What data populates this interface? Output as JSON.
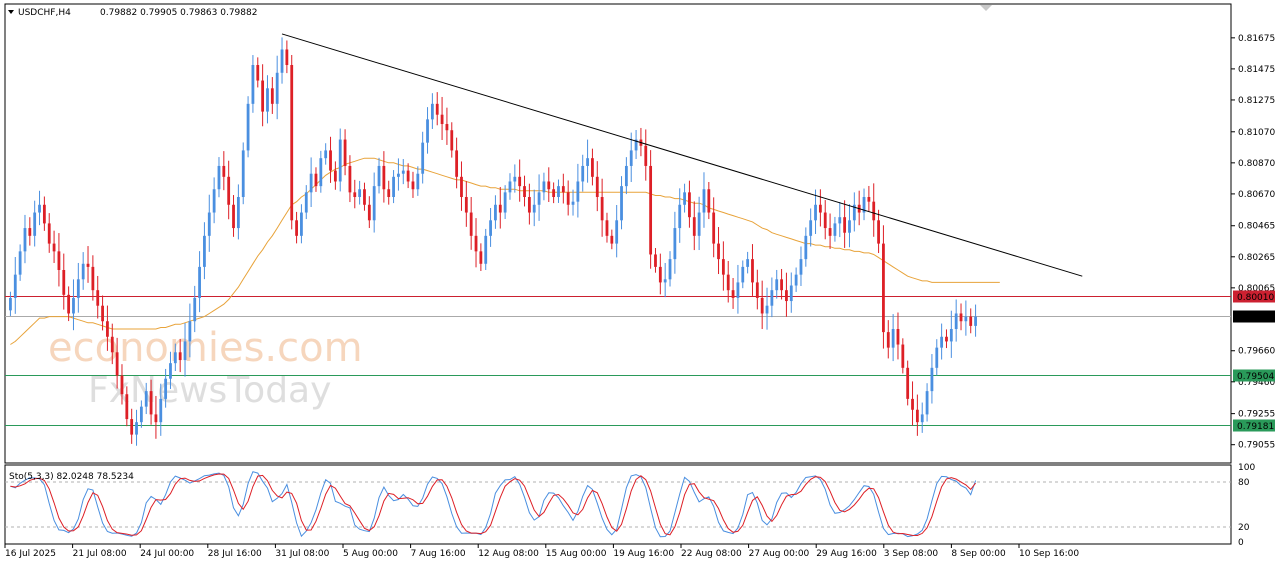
{
  "header": {
    "symbol": "USDCHF,H4",
    "ohlc": "0.79882 0.79905 0.79863 0.79882"
  },
  "watermark": {
    "line1": "economies.com",
    "line2": "FxNewsToday"
  },
  "indicator": {
    "label": "Sto(5,3,3) 82.0248 78.5234",
    "levels": [
      "100",
      "80",
      "20",
      "0"
    ]
  },
  "colors": {
    "bull": "#4a8fe0",
    "bear": "#dd1f26",
    "ma": "#e8a33a",
    "trendline": "#000000",
    "resistance": "#cc2030",
    "support": "#2a9a5a",
    "current": "#aaaaaa",
    "stoch_main": "#4a8fe0",
    "stoch_signal": "#dd1f26"
  },
  "chart_data": {
    "type": "candlestick",
    "symbol": "USDCHF",
    "timeframe": "H4",
    "ylim": [
      0.7895,
      0.8188
    ],
    "price_ticks": [
      "0.81675",
      "0.81475",
      "0.81275",
      "0.81070",
      "0.80870",
      "0.80670",
      "0.80465",
      "0.80265",
      "0.80065",
      "0.79660",
      "0.79460",
      "0.79255",
      "0.79055"
    ],
    "time_labels": [
      "16 Jul 2025",
      "21 Jul 08:00",
      "24 Jul 00:00",
      "28 Jul 16:00",
      "31 Jul 08:00",
      "5 Aug 00:00",
      "7 Aug 16:00",
      "12 Aug 08:00",
      "15 Aug 00:00",
      "19 Aug 16:00",
      "22 Aug 08:00",
      "27 Aug 00:00",
      "29 Aug 16:00",
      "3 Sep 08:00",
      "8 Sep 00:00",
      "10 Sep 16:00"
    ],
    "horizontal_levels": [
      {
        "price": 0.8001,
        "label": "0.80010",
        "role": "resistance"
      },
      {
        "price": 0.79882,
        "label": "0.79882",
        "role": "current"
      },
      {
        "price": 0.79504,
        "label": "0.79504",
        "role": "support"
      },
      {
        "price": 0.79181,
        "label": "0.79181",
        "role": "support"
      }
    ],
    "trendline": {
      "from": {
        "bar": 56,
        "price": 0.817
      },
      "to": {
        "bar": 221,
        "price": 0.8014
      }
    },
    "closes": [
      0.8,
      0.8015,
      0.803,
      0.8045,
      0.804,
      0.8055,
      0.806,
      0.8048,
      0.8035,
      0.803,
      0.8018,
      0.8002,
      0.799,
      0.8,
      0.8012,
      0.8022,
      0.802,
      0.8005,
      0.7995,
      0.7985,
      0.7975,
      0.7965,
      0.795,
      0.7938,
      0.7922,
      0.7912,
      0.792,
      0.793,
      0.794,
      0.7925,
      0.792,
      0.7935,
      0.7948,
      0.7958,
      0.7965,
      0.796,
      0.7972,
      0.7985,
      0.8,
      0.802,
      0.804,
      0.8055,
      0.807,
      0.8085,
      0.8078,
      0.806,
      0.8045,
      0.8065,
      0.8095,
      0.8125,
      0.815,
      0.814,
      0.812,
      0.8135,
      0.8125,
      0.8145,
      0.816,
      0.815,
      0.805,
      0.804,
      0.8055,
      0.8068,
      0.808,
      0.8072,
      0.809,
      0.8095,
      0.8082,
      0.8075,
      0.8102,
      0.8085,
      0.8068,
      0.8065,
      0.807,
      0.806,
      0.805,
      0.8072,
      0.8085,
      0.807,
      0.8065,
      0.8078,
      0.808,
      0.8082,
      0.8075,
      0.807,
      0.808,
      0.81,
      0.8115,
      0.8125,
      0.8118,
      0.8112,
      0.8108,
      0.8095,
      0.8078,
      0.8065,
      0.8055,
      0.804,
      0.803,
      0.8022,
      0.804,
      0.805,
      0.806,
      0.8055,
      0.8068,
      0.8075,
      0.8078,
      0.8072,
      0.8065,
      0.8055,
      0.806,
      0.8068,
      0.8075,
      0.807,
      0.8065,
      0.8072,
      0.8068,
      0.806,
      0.8062,
      0.8075,
      0.8085,
      0.809,
      0.8078,
      0.8065,
      0.805,
      0.804,
      0.8035,
      0.805,
      0.8072,
      0.8085,
      0.8095,
      0.8102,
      0.8098,
      0.8085,
      0.8028,
      0.802,
      0.801,
      0.8012,
      0.8025,
      0.8045,
      0.806,
      0.8068,
      0.8052,
      0.804,
      0.8055,
      0.807,
      0.8055,
      0.8035,
      0.8025,
      0.8015,
      0.8005,
      0.8,
      0.801,
      0.802,
      0.8025,
      0.801,
      0.8,
      0.799,
      0.7995,
      0.8005,
      0.8012,
      0.8005,
      0.7998,
      0.8008,
      0.8015,
      0.8025,
      0.804,
      0.805,
      0.806,
      0.8055,
      0.8045,
      0.804,
      0.8048,
      0.8052,
      0.8042,
      0.805,
      0.806,
      0.8055,
      0.8065,
      0.8062,
      0.805,
      0.8035,
      0.7978,
      0.7968,
      0.798,
      0.797,
      0.7955,
      0.7935,
      0.7928,
      0.792,
      0.7925,
      0.794,
      0.7955,
      0.7968,
      0.7975,
      0.7972,
      0.798,
      0.799,
      0.7985,
      0.7988,
      0.7982,
      0.7988
    ],
    "moving_average": [
      0.797,
      0.7972,
      0.7975,
      0.7978,
      0.7981,
      0.7984,
      0.7987,
      0.7987,
      0.7988,
      0.7988,
      0.7988,
      0.7988,
      0.7988,
      0.7987,
      0.7986,
      0.7985,
      0.7984,
      0.7984,
      0.7983,
      0.7982,
      0.7981,
      0.798,
      0.798,
      0.798,
      0.798,
      0.798,
      0.798,
      0.798,
      0.798,
      0.798,
      0.798,
      0.7981,
      0.7981,
      0.7982,
      0.7983,
      0.7983,
      0.7984,
      0.7985,
      0.7986,
      0.7987,
      0.7988,
      0.799,
      0.7992,
      0.7994,
      0.7996,
      0.7999,
      0.8003,
      0.8007,
      0.8012,
      0.8017,
      0.8022,
      0.8027,
      0.8031,
      0.8036,
      0.804,
      0.8045,
      0.805,
      0.8055,
      0.806,
      0.8062,
      0.8065,
      0.8067,
      0.807,
      0.8073,
      0.8076,
      0.8079,
      0.8081,
      0.8083,
      0.8084,
      0.8086,
      0.8087,
      0.8088,
      0.8089,
      0.809,
      0.809,
      0.809,
      0.8089,
      0.8088,
      0.8087,
      0.8087,
      0.8086,
      0.8085,
      0.8085,
      0.8084,
      0.8083,
      0.8083,
      0.8082,
      0.8081,
      0.808,
      0.8079,
      0.8078,
      0.8077,
      0.8076,
      0.8076,
      0.8075,
      0.8074,
      0.8073,
      0.8072,
      0.8072,
      0.8071,
      0.8071,
      0.807,
      0.807,
      0.807,
      0.807,
      0.8069,
      0.8069,
      0.8069,
      0.8069,
      0.8069,
      0.8069,
      0.8068,
      0.8068,
      0.8068,
      0.8068,
      0.8068,
      0.8068,
      0.8068,
      0.8068,
      0.8068,
      0.8068,
      0.8068,
      0.8068,
      0.8068,
      0.8068,
      0.8068,
      0.8068,
      0.8068,
      0.8068,
      0.8068,
      0.8068,
      0.8068,
      0.8067,
      0.8066,
      0.8066,
      0.8065,
      0.8065,
      0.8064,
      0.8064,
      0.8063,
      0.8062,
      0.8061,
      0.8061,
      0.806,
      0.8058,
      0.8057,
      0.8056,
      0.8055,
      0.8054,
      0.8053,
      0.8052,
      0.8051,
      0.805,
      0.8049,
      0.8047,
      0.8045,
      0.8044,
      0.8042,
      0.8041,
      0.804,
      0.8039,
      0.8038,
      0.8037,
      0.8036,
      0.8035,
      0.8035,
      0.8034,
      0.8034,
      0.8033,
      0.8033,
      0.8032,
      0.8032,
      0.8031,
      0.8031,
      0.803,
      0.803,
      0.8029,
      0.8029,
      0.8028,
      0.8026,
      0.8024,
      0.8022,
      0.802,
      0.8018,
      0.8016,
      0.8014,
      0.8013,
      0.8012,
      0.8011,
      0.8011,
      0.801,
      0.801,
      0.801,
      0.801,
      0.801,
      0.801,
      0.801,
      0.801,
      0.801,
      0.801,
      0.801,
      0.801,
      0.801,
      0.801,
      0.801
    ],
    "stochastic": {
      "k_period": 5,
      "d_period": 3,
      "slowing": 3,
      "main": 82.0248,
      "signal": 78.5234,
      "ylim": [
        0,
        100
      ],
      "levels": [
        20,
        80
      ]
    }
  }
}
